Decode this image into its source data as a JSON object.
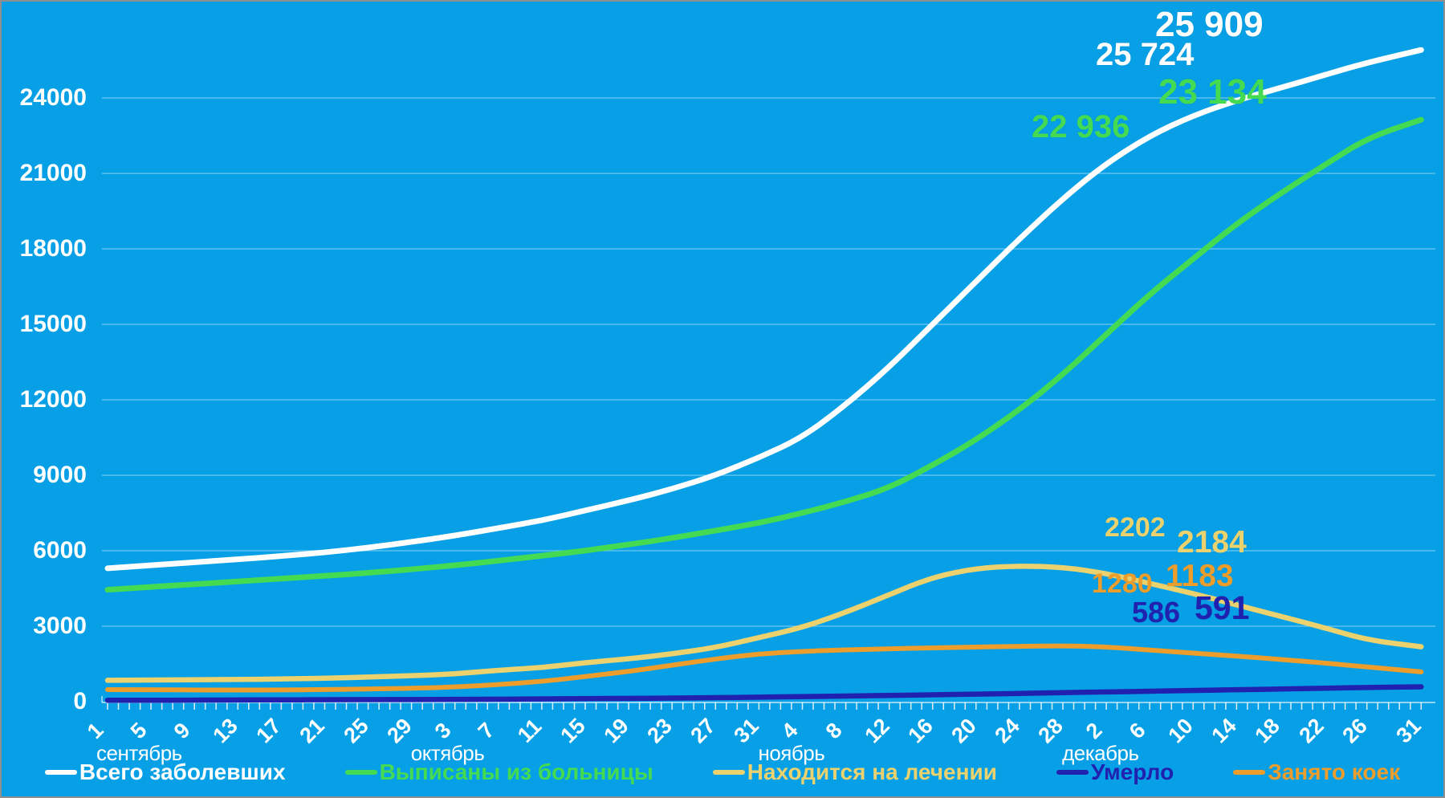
{
  "chart_data": {
    "type": "line",
    "title": "",
    "background_color": "#07A0E6",
    "grid": "horizontal",
    "legend_position": "bottom",
    "ylim": [
      0,
      26500
    ],
    "yticks": [
      0,
      3000,
      6000,
      9000,
      12000,
      15000,
      18000,
      21000,
      24000
    ],
    "x_range_days": 121,
    "x_tick_labels": [
      "1",
      "5",
      "9",
      "13",
      "17",
      "21",
      "25",
      "29",
      "3",
      "7",
      "11",
      "15",
      "19",
      "23",
      "27",
      "31",
      "4",
      "8",
      "12",
      "16",
      "20",
      "24",
      "28",
      "2",
      "6",
      "10",
      "14",
      "18",
      "22",
      "26",
      "31"
    ],
    "x_tick_day_index": [
      0,
      4,
      8,
      12,
      16,
      20,
      24,
      28,
      32,
      36,
      40,
      44,
      48,
      52,
      56,
      60,
      64,
      68,
      72,
      76,
      80,
      84,
      88,
      92,
      96,
      100,
      104,
      108,
      112,
      116,
      121
    ],
    "month_labels": [
      {
        "label": "сентябрь",
        "day": 0
      },
      {
        "label": "октябрь",
        "day": 32
      },
      {
        "label": "ноябрь",
        "day": 64
      },
      {
        "label": "декабрь",
        "day": 92
      }
    ],
    "series": [
      {
        "name": "Всего заболевших",
        "key": "total-cases",
        "color": "#FFFFFF",
        "width": 7,
        "values": [
          5300,
          5420,
          5540,
          5660,
          5790,
          5930,
          6120,
          6350,
          6600,
          6900,
          7200,
          7600,
          8000,
          8450,
          9000,
          9700,
          10500,
          11800,
          13300,
          15000,
          16700,
          18400,
          20000,
          21400,
          22500,
          23300,
          23900,
          24400,
          24900,
          25400,
          25909
        ],
        "last_two_labels": [
          "25 724",
          "25 909"
        ]
      },
      {
        "name": "Выписаны из больницы",
        "key": "discharged",
        "color": "#44DB52",
        "width": 7,
        "values": [
          4450,
          4560,
          4670,
          4780,
          4890,
          5000,
          5120,
          5260,
          5420,
          5600,
          5800,
          6000,
          6250,
          6500,
          6800,
          7100,
          7500,
          7950,
          8500,
          9400,
          10400,
          11600,
          13000,
          14600,
          16200,
          17600,
          19000,
          20200,
          21300,
          22400,
          23134
        ],
        "last_two_labels": [
          "22 936",
          "23 134"
        ]
      },
      {
        "name": "Находится на лечении",
        "key": "in-treatment",
        "color": "#EBD26E",
        "width": 6.5,
        "values": [
          850,
          860,
          870,
          880,
          900,
          930,
          980,
          1030,
          1100,
          1250,
          1350,
          1550,
          1700,
          1900,
          2150,
          2550,
          2950,
          3550,
          4250,
          4950,
          5300,
          5400,
          5350,
          5100,
          4700,
          4300,
          3850,
          3400,
          2950,
          2450,
          2184
        ],
        "last_two_labels": [
          "2202",
          "2184"
        ]
      },
      {
        "name": "Умерло",
        "key": "deaths",
        "color": "#2121B0",
        "width": 6.5,
        "values": [
          55,
          58,
          62,
          66,
          70,
          75,
          80,
          86,
          93,
          100,
          110,
          120,
          132,
          145,
          160,
          178,
          200,
          222,
          246,
          272,
          300,
          328,
          356,
          385,
          415,
          445,
          475,
          505,
          535,
          565,
          591
        ],
        "last_two_labels": [
          "586",
          "591"
        ]
      },
      {
        "name": "Занято коек",
        "key": "beds-occupied",
        "color": "#EC9D2B",
        "width": 6,
        "values": [
          480,
          470,
          465,
          460,
          465,
          480,
          500,
          530,
          580,
          680,
          800,
          1000,
          1200,
          1450,
          1700,
          1900,
          2000,
          2060,
          2100,
          2140,
          2170,
          2200,
          2220,
          2180,
          2050,
          1930,
          1810,
          1680,
          1540,
          1380,
          1183
        ],
        "last_two_labels": [
          "1280",
          "1183"
        ]
      }
    ]
  },
  "legend": {
    "items": [
      {
        "label": "Всего заболевших",
        "color": "#FFFFFF"
      },
      {
        "label": "Выписаны из больницы",
        "color": "#44DB52"
      },
      {
        "label": "Находится на лечении",
        "color": "#EBD26E"
      },
      {
        "label": "Умерло",
        "color": "#2121B0"
      },
      {
        "label": "Занято коек",
        "color": "#EC9D2B"
      }
    ]
  }
}
